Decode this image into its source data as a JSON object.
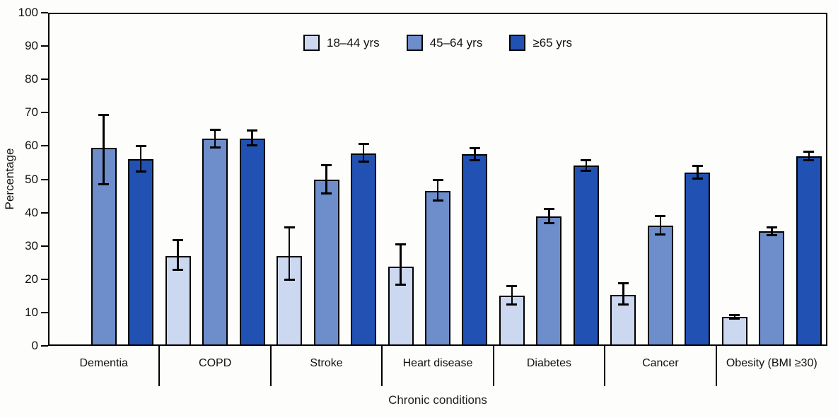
{
  "chart_data": {
    "type": "bar",
    "title": "",
    "xlabel": "Chronic conditions",
    "ylabel": "Percentage",
    "ylim": [
      0,
      100
    ],
    "ytick_interval": 10,
    "grid": false,
    "legend_position": "top-center",
    "error_bars": true,
    "categories": [
      "Dementia",
      "COPD",
      "Stroke",
      "Heart disease",
      "Diabetes",
      "Cancer",
      "Obesity (BMI ≥30)"
    ],
    "series": [
      {
        "name": "18–44 yrs",
        "color": "#ccd8f0",
        "values": [
          null,
          26.9,
          26.9,
          23.7,
          15.0,
          15.3,
          8.7
        ],
        "ci_low": [
          null,
          22.8,
          19.8,
          18.3,
          12.5,
          12.5,
          8.2
        ],
        "ci_high": [
          null,
          31.7,
          35.5,
          30.4,
          17.9,
          18.7,
          9.2
        ]
      },
      {
        "name": "45–64 yrs",
        "color": "#6d8dcb",
        "values": [
          59.5,
          62.2,
          50.0,
          46.4,
          38.9,
          36.1,
          34.4
        ],
        "ci_low": [
          48.6,
          59.6,
          45.7,
          43.6,
          36.8,
          33.4,
          33.3
        ],
        "ci_high": [
          69.3,
          64.9,
          54.3,
          49.7,
          41.1,
          38.9,
          35.6
        ]
      },
      {
        "name": "≥65 yrs",
        "color": "#2151b2",
        "values": [
          56.1,
          62.3,
          57.8,
          57.5,
          54.2,
          52.1,
          57.0
        ],
        "ci_low": [
          52.3,
          60.2,
          55.3,
          55.7,
          52.6,
          50.2,
          55.7
        ],
        "ci_high": [
          60.0,
          64.6,
          60.6,
          59.3,
          55.8,
          54.0,
          58.3
        ]
      }
    ]
  },
  "colors": {
    "background": "#fdfefb",
    "axis": "#000000",
    "text": "#000000",
    "bar_border": "#000000",
    "error_bar": "#000000"
  }
}
